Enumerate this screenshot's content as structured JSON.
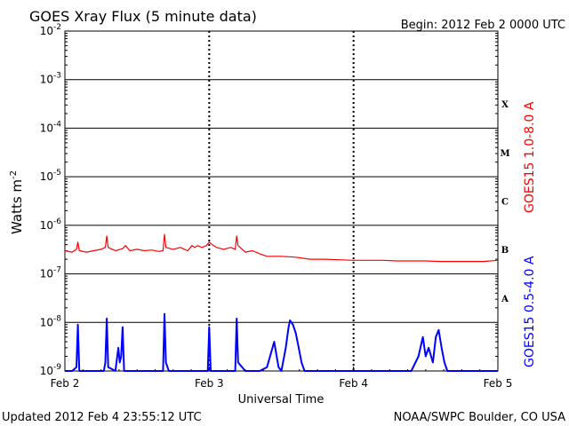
{
  "header": {
    "title": "GOES Xray Flux (5 minute data)",
    "begin": "Begin:  2012 Feb 2 0000 UTC"
  },
  "footer": {
    "updated": "Updated 2012 Feb  4 23:55:12 UTC",
    "credit": "NOAA/SWPC Boulder, CO USA"
  },
  "colors": {
    "long_band": "#ff0000",
    "short_band": "#0000ff",
    "grid": "#000000"
  },
  "chart_data": {
    "type": "line",
    "title": "GOES Xray Flux (5 minute data)",
    "xlabel": "Universal Time",
    "ylabel": "Watts m",
    "ylabel_sup": "-2",
    "yscale": "log",
    "ylim": [
      1e-09,
      0.01
    ],
    "xlim": [
      0,
      3
    ],
    "x_unit": "days since 2012 Feb 2 0000 UTC",
    "x_ticks": [
      {
        "x": 0,
        "label": "Feb 2"
      },
      {
        "x": 1,
        "label": "Feb 3"
      },
      {
        "x": 2,
        "label": "Feb 4"
      },
      {
        "x": 3,
        "label": "Feb 5"
      }
    ],
    "y_ticks": [
      {
        "exp": -9,
        "label": "10",
        "sup": "-9"
      },
      {
        "exp": -8,
        "label": "10",
        "sup": "-8"
      },
      {
        "exp": -7,
        "label": "10",
        "sup": "-7"
      },
      {
        "exp": -6,
        "label": "10",
        "sup": "-6"
      },
      {
        "exp": -5,
        "label": "10",
        "sup": "-5"
      },
      {
        "exp": -4,
        "label": "10",
        "sup": "-4"
      },
      {
        "exp": -3,
        "label": "10",
        "sup": "-3"
      },
      {
        "exp": -2,
        "label": "10",
        "sup": "-2"
      }
    ],
    "flare_classes": [
      {
        "label": "X",
        "exp": -3.5
      },
      {
        "label": "M",
        "exp": -4.5
      },
      {
        "label": "C",
        "exp": -5.5
      },
      {
        "label": "B",
        "exp": -6.5
      },
      {
        "label": "A",
        "exp": -7.5
      }
    ],
    "grid": "horizontal lines at each decade, dashed vertical lines at day boundaries",
    "legend_placement": "right side, vertical text",
    "series": [
      {
        "name": "GOES15 1.0-8.0 A",
        "color": "#ff0000",
        "points": [
          [
            0.0,
            3e-07
          ],
          [
            0.05,
            2.8e-07
          ],
          [
            0.08,
            3.2e-07
          ],
          [
            0.09,
            4.5e-07
          ],
          [
            0.1,
            3e-07
          ],
          [
            0.15,
            2.8e-07
          ],
          [
            0.2,
            3e-07
          ],
          [
            0.25,
            3.2e-07
          ],
          [
            0.28,
            3.5e-07
          ],
          [
            0.29,
            6e-07
          ],
          [
            0.3,
            3.5e-07
          ],
          [
            0.35,
            3e-07
          ],
          [
            0.4,
            3.3e-07
          ],
          [
            0.42,
            3.8e-07
          ],
          [
            0.45,
            3e-07
          ],
          [
            0.5,
            3.2e-07
          ],
          [
            0.55,
            3e-07
          ],
          [
            0.6,
            3.1e-07
          ],
          [
            0.65,
            2.9e-07
          ],
          [
            0.68,
            3e-07
          ],
          [
            0.69,
            6.5e-07
          ],
          [
            0.7,
            3.5e-07
          ],
          [
            0.75,
            3.2e-07
          ],
          [
            0.8,
            3.5e-07
          ],
          [
            0.85,
            3e-07
          ],
          [
            0.88,
            3.8e-07
          ],
          [
            0.9,
            3.5e-07
          ],
          [
            0.92,
            3.8e-07
          ],
          [
            0.95,
            3.5e-07
          ],
          [
            0.98,
            3.8e-07
          ],
          [
            1.0,
            4.5e-07
          ],
          [
            1.02,
            4e-07
          ],
          [
            1.05,
            3.5e-07
          ],
          [
            1.1,
            3.2e-07
          ],
          [
            1.15,
            3.5e-07
          ],
          [
            1.18,
            3.2e-07
          ],
          [
            1.19,
            6e-07
          ],
          [
            1.2,
            3.8e-07
          ],
          [
            1.25,
            2.8e-07
          ],
          [
            1.3,
            3e-07
          ],
          [
            1.35,
            2.6e-07
          ],
          [
            1.4,
            2.3e-07
          ],
          [
            1.5,
            2.3e-07
          ],
          [
            1.6,
            2.2e-07
          ],
          [
            1.7,
            2e-07
          ],
          [
            1.8,
            2e-07
          ],
          [
            1.9,
            1.95e-07
          ],
          [
            2.0,
            1.9e-07
          ],
          [
            2.1,
            1.9e-07
          ],
          [
            2.2,
            1.9e-07
          ],
          [
            2.3,
            1.85e-07
          ],
          [
            2.4,
            1.85e-07
          ],
          [
            2.5,
            1.85e-07
          ],
          [
            2.6,
            1.8e-07
          ],
          [
            2.7,
            1.8e-07
          ],
          [
            2.8,
            1.8e-07
          ],
          [
            2.9,
            1.8e-07
          ],
          [
            3.0,
            1.9e-07
          ]
        ]
      },
      {
        "name": "GOES15 0.5-4.0 A",
        "color": "#0000ff",
        "points": [
          [
            0.0,
            9e-10
          ],
          [
            0.05,
            9e-10
          ],
          [
            0.08,
            1.2e-09
          ],
          [
            0.09,
            9e-09
          ],
          [
            0.1,
            1e-09
          ],
          [
            0.2,
            9e-10
          ],
          [
            0.27,
            1e-09
          ],
          [
            0.28,
            1.5e-09
          ],
          [
            0.29,
            1.2e-08
          ],
          [
            0.3,
            1.2e-09
          ],
          [
            0.35,
            1e-09
          ],
          [
            0.37,
            3e-09
          ],
          [
            0.38,
            1.5e-09
          ],
          [
            0.39,
            2e-09
          ],
          [
            0.4,
            8e-09
          ],
          [
            0.41,
            1e-09
          ],
          [
            0.5,
            9e-10
          ],
          [
            0.55,
            1e-09
          ],
          [
            0.6,
            9e-10
          ],
          [
            0.68,
            1e-09
          ],
          [
            0.69,
            1.5e-08
          ],
          [
            0.7,
            1.5e-09
          ],
          [
            0.72,
            1e-09
          ],
          [
            0.8,
            1e-09
          ],
          [
            0.85,
            9e-10
          ],
          [
            0.9,
            9e-10
          ],
          [
            0.99,
            1e-09
          ],
          [
            1.0,
            8e-09
          ],
          [
            1.01,
            1e-09
          ],
          [
            1.1,
            9e-10
          ],
          [
            1.18,
            1e-09
          ],
          [
            1.19,
            1.2e-08
          ],
          [
            1.2,
            1.5e-09
          ],
          [
            1.25,
            9e-10
          ],
          [
            1.35,
            9e-10
          ],
          [
            1.4,
            1.2e-09
          ],
          [
            1.45,
            4e-09
          ],
          [
            1.48,
            1.2e-09
          ],
          [
            1.5,
            1e-09
          ],
          [
            1.53,
            3e-09
          ],
          [
            1.55,
            8e-09
          ],
          [
            1.56,
            1.1e-08
          ],
          [
            1.58,
            9e-09
          ],
          [
            1.6,
            6e-09
          ],
          [
            1.62,
            3e-09
          ],
          [
            1.64,
            1.5e-09
          ],
          [
            1.66,
            1e-09
          ],
          [
            1.75,
            9e-10
          ],
          [
            1.9,
            9e-10
          ],
          [
            2.1,
            9e-10
          ],
          [
            2.3,
            9e-10
          ],
          [
            2.4,
            1e-09
          ],
          [
            2.45,
            2e-09
          ],
          [
            2.48,
            5e-09
          ],
          [
            2.5,
            2e-09
          ],
          [
            2.52,
            3e-09
          ],
          [
            2.55,
            1.5e-09
          ],
          [
            2.57,
            5e-09
          ],
          [
            2.59,
            7e-09
          ],
          [
            2.61,
            3e-09
          ],
          [
            2.63,
            1.5e-09
          ],
          [
            2.65,
            9e-10
          ],
          [
            2.75,
            9e-10
          ],
          [
            2.9,
            9e-10
          ],
          [
            3.0,
            9e-10
          ]
        ]
      }
    ]
  }
}
